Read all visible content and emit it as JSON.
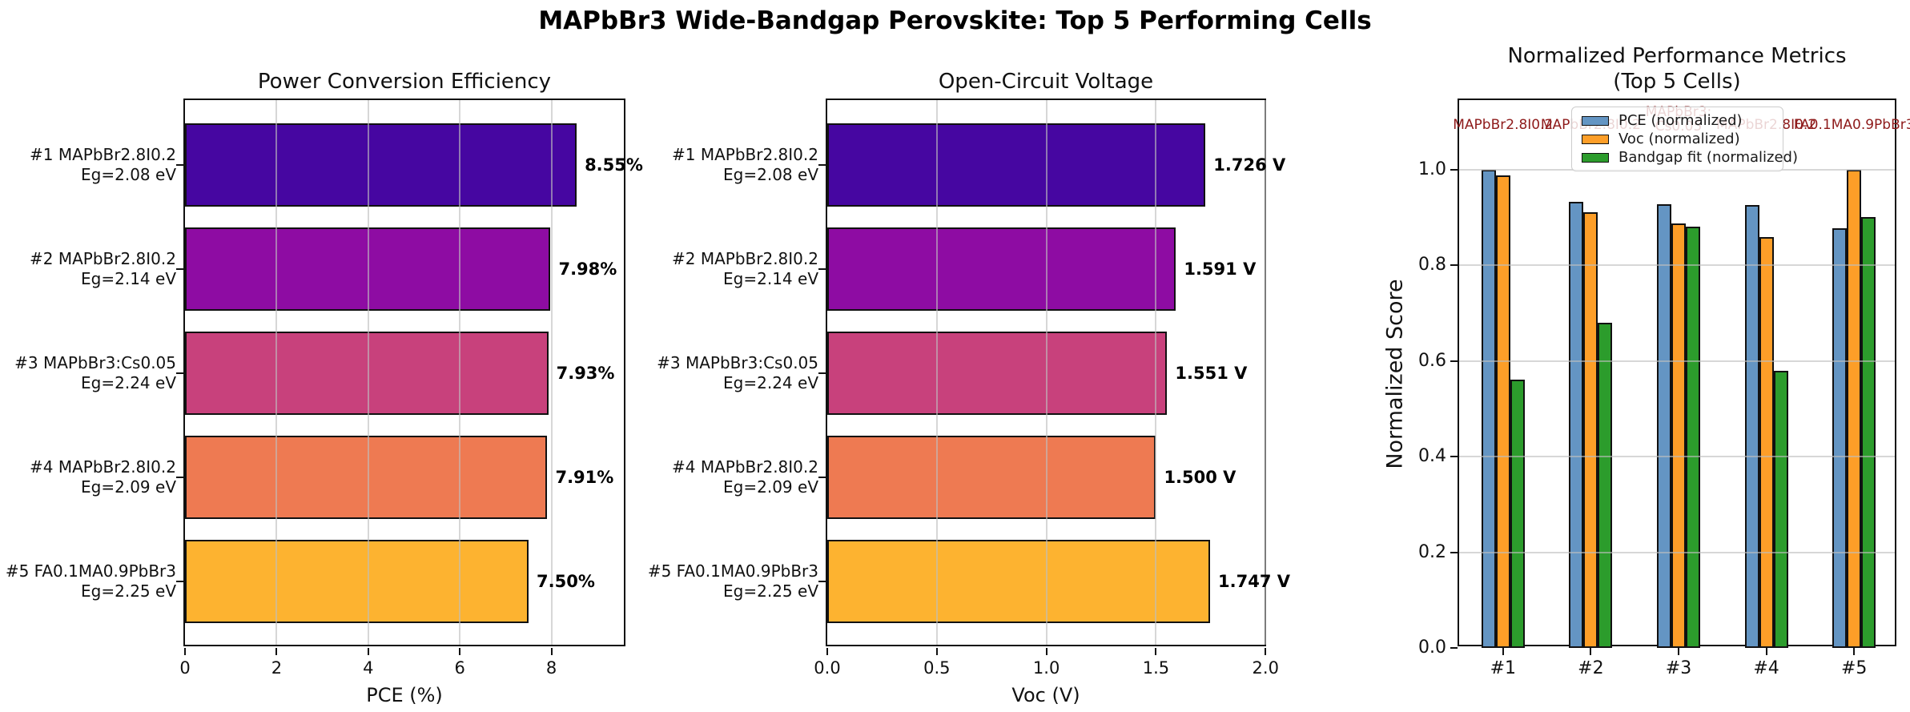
{
  "figure": {
    "title": "MAPbBr3 Wide-Bandgap Perovskite: Top 5 Performing Cells"
  },
  "chart_data": [
    {
      "type": "bar",
      "orientation": "horizontal",
      "title": "Power Conversion Efficiency",
      "xlabel": "PCE (%)",
      "categories": [
        "#1 MAPbBr2.8I0.2\nEg=2.08 eV",
        "#2 MAPbBr2.8I0.2\nEg=2.14 eV",
        "#3 MAPbBr3:Cs0.05\nEg=2.24 eV",
        "#4 MAPbBr2.8I0.2\nEg=2.09 eV",
        "#5 FA0.1MA0.9PbBr3\nEg=2.25 eV"
      ],
      "values": [
        8.55,
        7.98,
        7.93,
        7.91,
        7.5
      ],
      "value_labels": [
        "8.55%",
        "7.98%",
        "7.93%",
        "7.91%",
        "7.50%"
      ],
      "bar_colors": [
        "#4606a1",
        "#8e0ca3",
        "#c8417c",
        "#ee7a52",
        "#fdb330"
      ],
      "xticks": [
        0,
        2,
        4,
        6,
        8
      ],
      "xtick_labels": [
        "0",
        "2",
        "4",
        "6",
        "8"
      ],
      "xlim": [
        0,
        9.65
      ],
      "grid": "vertical"
    },
    {
      "type": "bar",
      "orientation": "horizontal",
      "title": "Open-Circuit Voltage",
      "xlabel": "Voc (V)",
      "categories": [
        "#1 MAPbBr2.8I0.2\nEg=2.08 eV",
        "#2 MAPbBr2.8I0.2\nEg=2.14 eV",
        "#3 MAPbBr3:Cs0.05\nEg=2.24 eV",
        "#4 MAPbBr2.8I0.2\nEg=2.09 eV",
        "#5 FA0.1MA0.9PbBr3\nEg=2.25 eV"
      ],
      "values": [
        1.726,
        1.591,
        1.551,
        1.5,
        1.747
      ],
      "value_labels": [
        "1.726 V",
        "1.591 V",
        "1.551 V",
        "1.500 V",
        "1.747 V"
      ],
      "bar_colors": [
        "#4606a1",
        "#8e0ca3",
        "#c8417c",
        "#ee7a52",
        "#fdb330"
      ],
      "xticks": [
        0,
        0.5,
        1.0,
        1.5,
        2.0
      ],
      "xtick_labels": [
        "0.0",
        "0.5",
        "1.0",
        "1.5",
        "2.0"
      ],
      "xlim": [
        0,
        2.01
      ],
      "grid": "vertical"
    },
    {
      "type": "bar",
      "orientation": "vertical-grouped",
      "title": "Normalized Performance Metrics\n(Top 5 Cells)",
      "ylabel": "Normalized Score",
      "categories": [
        "#1",
        "#2",
        "#3",
        "#4",
        "#5"
      ],
      "series": [
        {
          "name": "PCE (normalized)",
          "color": "#6495c3",
          "values": [
            1.0,
            0.933,
            0.927,
            0.925,
            0.877
          ]
        },
        {
          "name": "Voc (normalized)",
          "color": "#fd9e28",
          "values": [
            0.988,
            0.911,
            0.888,
            0.859,
            1.0
          ]
        },
        {
          "name": "Bandgap fit (normalized)",
          "color": "#2c9c2c",
          "values": [
            0.56,
            0.68,
            0.88,
            0.58,
            0.9
          ]
        }
      ],
      "annotations": [
        "MAPbBr2.8I0.2",
        "MAPbBr2.8I0.2",
        "MAPbBr3:\nCs0.05",
        "MAPbBr2.8I0.2",
        "FA0.1MA0.9PbBr3"
      ],
      "annotation_color": "#8e1a1a",
      "yticks": [
        0.0,
        0.2,
        0.4,
        0.6,
        0.8,
        1.0
      ],
      "ytick_labels": [
        "0.0",
        "0.2",
        "0.4",
        "0.6",
        "0.8",
        "1.0"
      ],
      "ylim": [
        0,
        1.145
      ],
      "legend_position": "upper center",
      "grid": "horizontal"
    }
  ]
}
